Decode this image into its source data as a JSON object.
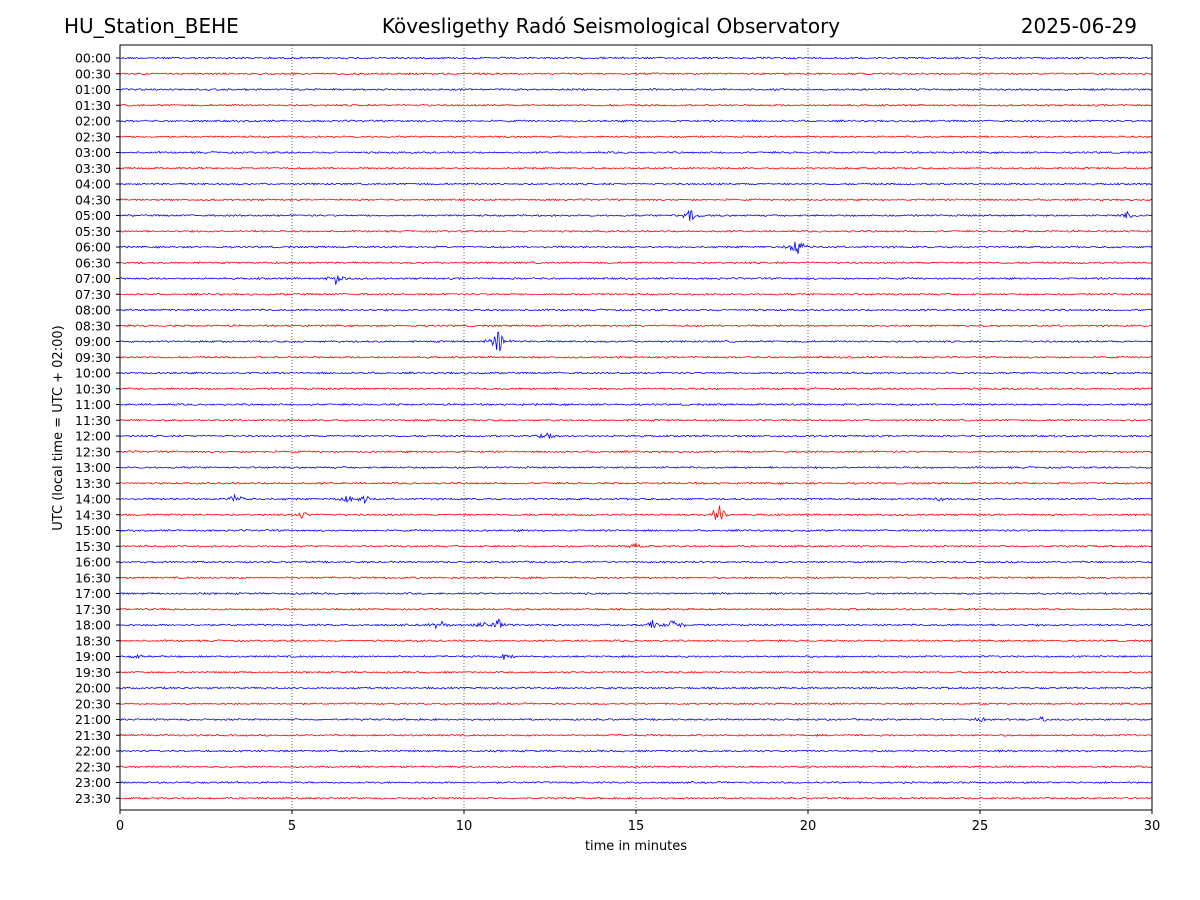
{
  "header": {
    "station": "HU_Station_BEHE",
    "observatory": "Kövesligethy Radó Seismological Observatory",
    "date": "2025-06-29"
  },
  "chart_data": {
    "type": "line",
    "title": "Kövesligethy Radó Seismological Observatory",
    "xlabel": "time in minutes",
    "ylabel": "UTC (local time = UTC + 02:00)",
    "xlim": [
      0,
      30
    ],
    "xticks": [
      0,
      5,
      10,
      15,
      20,
      25,
      30
    ],
    "grid": "vertical dotted at x ticks",
    "row_labels": [
      "00:00",
      "00:30",
      "01:00",
      "01:30",
      "02:00",
      "02:30",
      "03:00",
      "03:30",
      "04:00",
      "04:30",
      "05:00",
      "05:30",
      "06:00",
      "06:30",
      "07:00",
      "07:30",
      "08:00",
      "08:30",
      "09:00",
      "09:30",
      "10:00",
      "10:30",
      "11:00",
      "11:30",
      "12:00",
      "12:30",
      "13:00",
      "13:30",
      "14:00",
      "14:30",
      "15:00",
      "15:30",
      "16:00",
      "16:30",
      "17:00",
      "17:30",
      "18:00",
      "18:30",
      "19:00",
      "19:30",
      "20:00",
      "20:30",
      "21:00",
      "21:30",
      "22:00",
      "22:30",
      "23:00",
      "23:30"
    ],
    "trace_colors": [
      "#0000ff",
      "#ff0000"
    ],
    "events": [
      {
        "row": "05:00",
        "minute": 16.6,
        "amplitude": 0.45
      },
      {
        "row": "05:00",
        "minute": 29.3,
        "amplitude": 0.3
      },
      {
        "row": "06:00",
        "minute": 19.7,
        "amplitude": 0.75
      },
      {
        "row": "07:00",
        "minute": 6.3,
        "amplitude": 0.45
      },
      {
        "row": "09:00",
        "minute": 11.0,
        "amplitude": 0.9
      },
      {
        "row": "12:00",
        "minute": 12.4,
        "amplitude": 0.35
      },
      {
        "row": "14:00",
        "minute": 3.4,
        "amplitude": 0.4
      },
      {
        "row": "14:00",
        "minute": 6.6,
        "amplitude": 0.3
      },
      {
        "row": "14:00",
        "minute": 7.1,
        "amplitude": 0.25
      },
      {
        "row": "14:00",
        "minute": 23.8,
        "amplitude": 0.2
      },
      {
        "row": "14:30",
        "minute": 17.4,
        "amplitude": 0.8
      },
      {
        "row": "14:30",
        "minute": 5.3,
        "amplitude": 0.25
      },
      {
        "row": "15:30",
        "minute": 15.0,
        "amplitude": 0.2
      },
      {
        "row": "18:00",
        "minute": 9.3,
        "amplitude": 0.35
      },
      {
        "row": "18:00",
        "minute": 10.5,
        "amplitude": 0.3
      },
      {
        "row": "18:00",
        "minute": 11.0,
        "amplitude": 0.4
      },
      {
        "row": "18:00",
        "minute": 15.5,
        "amplitude": 0.3
      },
      {
        "row": "18:00",
        "minute": 16.1,
        "amplitude": 0.45
      },
      {
        "row": "19:00",
        "minute": 11.2,
        "amplitude": 0.3
      },
      {
        "row": "19:00",
        "minute": 0.5,
        "amplitude": 0.2
      },
      {
        "row": "21:00",
        "minute": 25.0,
        "amplitude": 0.2
      },
      {
        "row": "21:00",
        "minute": 26.8,
        "amplitude": 0.2
      }
    ]
  }
}
